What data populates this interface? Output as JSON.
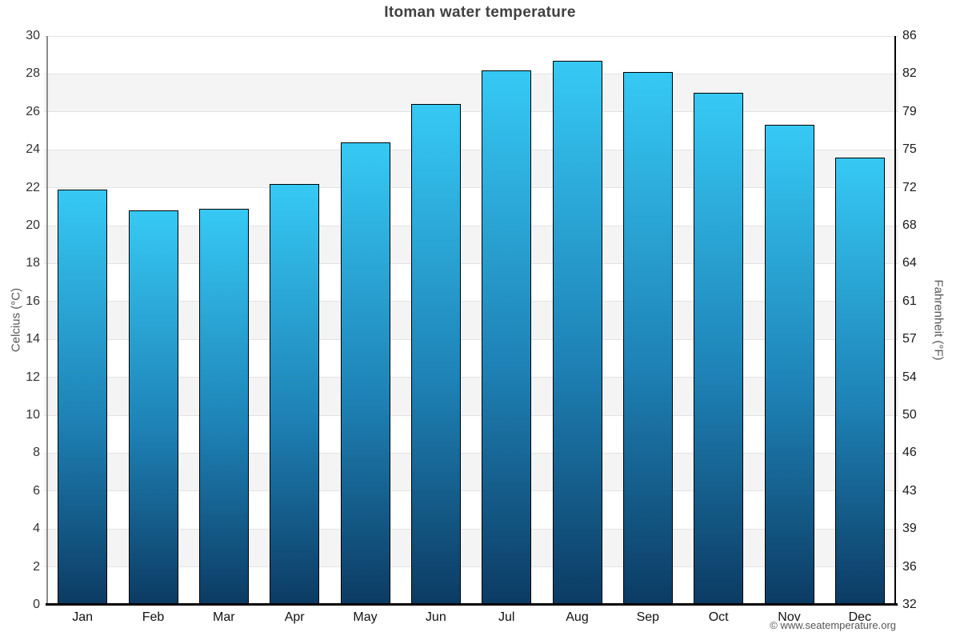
{
  "title": "Itoman water temperature",
  "credit": "© www.seatemperature.org",
  "axes": {
    "left_label": "Celcius (°C)",
    "right_label": "Fahrenheit (°F)"
  },
  "chart_data": {
    "type": "bar",
    "title": "Itoman water temperature",
    "categories": [
      "Jan",
      "Feb",
      "Mar",
      "Apr",
      "May",
      "Jun",
      "Jul",
      "Aug",
      "Sep",
      "Oct",
      "Nov",
      "Dec"
    ],
    "values": [
      21.9,
      20.8,
      20.9,
      22.2,
      24.4,
      26.4,
      28.2,
      28.7,
      28.1,
      27.0,
      25.3,
      23.6
    ],
    "unit": "°C",
    "ylabel": "Celcius (°C)",
    "ylabel_right": "Fahrenheit (°F)",
    "ylim": [
      0,
      30
    ],
    "ytick_step": 2,
    "yticks_celsius": [
      30,
      28,
      26,
      24,
      22,
      20,
      18,
      16,
      14,
      12,
      10,
      8,
      6,
      4,
      2,
      0
    ],
    "yticks_fahrenheit": [
      86,
      82,
      79,
      75,
      72,
      68,
      64,
      61,
      57,
      54,
      50,
      46,
      43,
      39,
      36,
      32
    ],
    "grid": true,
    "legend": false,
    "alternating_bands": true,
    "colors": {
      "bar_top": "#36C9F4",
      "bar_mid": "#1E82B6",
      "bar_bottom": "#0C3B63",
      "bar_border": "#000000",
      "band": "#F4F4F4",
      "gridline": "#E2E2E2",
      "title_text": "#404040"
    }
  }
}
